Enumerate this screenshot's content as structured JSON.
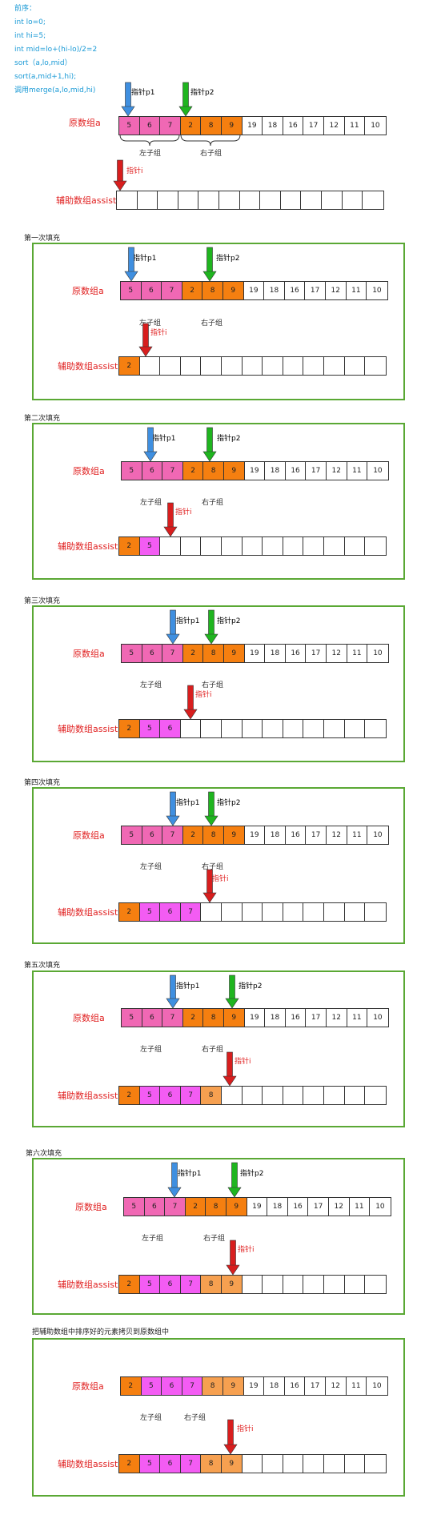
{
  "intro": {
    "code_lines": [
      "前序：",
      "int lo=0;",
      "int hi=5;",
      "int mid=lo+(hi-lo)/2=2",
      "sort（a,lo,mid）",
      "sort(a,mid+1,hi);",
      "调用merge(a,lo,mid,hi)"
    ],
    "pointer_p1": "指针p1",
    "pointer_p2": "指针p2",
    "array_a_label": "原数组a",
    "array_a": [
      "5",
      "6",
      "7",
      "2",
      "8",
      "9",
      "19",
      "18",
      "16",
      "17",
      "12",
      "11",
      "10"
    ],
    "left_group": "左子组",
    "right_group": "右子组",
    "pointer_i": "指针i",
    "assist_label": "辅助数组assist"
  },
  "labels": {
    "pointer_p1": "指针p1",
    "pointer_p2": "指针p2",
    "pointer_i": "指针i",
    "array_a_label": "原数组a",
    "assist_label": "辅助数组assist",
    "left_group": "左子组",
    "right_group": "右子组"
  },
  "steps": [
    {
      "title": "第一次填充",
      "array_a": [
        "5",
        "6",
        "7",
        "2",
        "8",
        "9",
        "19",
        "18",
        "16",
        "17",
        "12",
        "11",
        "10"
      ],
      "assist": [
        "2",
        "",
        "",
        "",
        "",
        "",
        "",
        "",
        "",
        "",
        "",
        "",
        ""
      ]
    },
    {
      "title": "第二次填充",
      "array_a": [
        "5",
        "6",
        "7",
        "2",
        "8",
        "9",
        "19",
        "18",
        "16",
        "17",
        "12",
        "11",
        "10"
      ],
      "assist": [
        "2",
        "5",
        "",
        "",
        "",
        "",
        "",
        "",
        "",
        "",
        "",
        "",
        ""
      ]
    },
    {
      "title": "第三次填充",
      "array_a": [
        "5",
        "6",
        "7",
        "2",
        "8",
        "9",
        "19",
        "18",
        "16",
        "17",
        "12",
        "11",
        "10"
      ],
      "assist": [
        "2",
        "5",
        "6",
        "",
        "",
        "",
        "",
        "",
        "",
        "",
        "",
        "",
        ""
      ]
    },
    {
      "title": "第四次填充",
      "array_a": [
        "5",
        "6",
        "7",
        "2",
        "8",
        "9",
        "19",
        "18",
        "16",
        "17",
        "12",
        "11",
        "10"
      ],
      "assist": [
        "2",
        "5",
        "6",
        "7",
        "",
        "",
        "",
        "",
        "",
        "",
        "",
        "",
        ""
      ]
    },
    {
      "title": "第五次填充",
      "array_a": [
        "5",
        "6",
        "7",
        "2",
        "8",
        "9",
        "19",
        "18",
        "16",
        "17",
        "12",
        "11",
        "10"
      ],
      "assist": [
        "2",
        "5",
        "6",
        "7",
        "8",
        "",
        "",
        "",
        "",
        "",
        "",
        "",
        ""
      ]
    },
    {
      "title": "第六次填充",
      "array_a": [
        "5",
        "6",
        "7",
        "2",
        "8",
        "9",
        "19",
        "18",
        "16",
        "17",
        "12",
        "11",
        "10"
      ],
      "assist": [
        "2",
        "5",
        "6",
        "7",
        "8",
        "9",
        "",
        "",
        "",
        "",
        "",
        "",
        ""
      ]
    },
    {
      "title": "把辅助数组中排序好的元素拷贝到原数组中",
      "array_a": [
        "2",
        "5",
        "6",
        "7",
        "8",
        "9",
        "19",
        "18",
        "16",
        "17",
        "12",
        "11",
        "10"
      ],
      "assist": [
        "2",
        "5",
        "6",
        "7",
        "8",
        "9",
        "",
        "",
        "",
        "",
        "",
        "",
        ""
      ]
    }
  ],
  "colors": {
    "left_group": "#f068b4",
    "right_group": "#f57f10",
    "filled_from_left": "#f35cf3",
    "pointer_p1": "#3f8fe0",
    "pointer_p2": "#1fb51f",
    "pointer_i": "#d81e1e",
    "panel_border": "#5aa834"
  }
}
